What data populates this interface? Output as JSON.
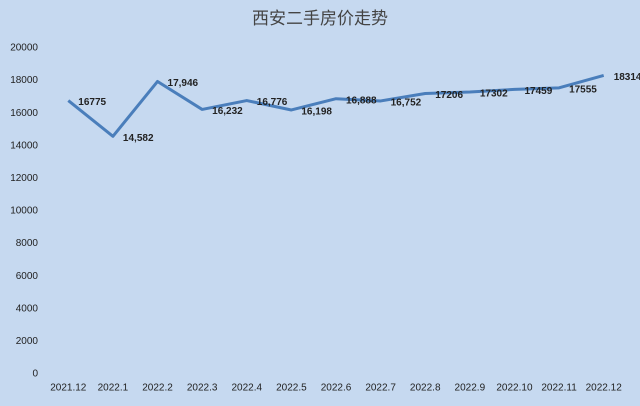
{
  "chart_data": {
    "type": "line",
    "title": "西安二手房价走势",
    "categories": [
      "2021.12",
      "2022.1",
      "2022.2",
      "2022.3",
      "2022.4",
      "2022.5",
      "2022.6",
      "2022.7",
      "2022.8",
      "2022.9",
      "2022.10",
      "2022.11",
      "2022.12"
    ],
    "values": [
      16775,
      14582,
      17946,
      16232,
      16776,
      16198,
      16888,
      16752,
      17206,
      17302,
      17459,
      17555,
      18314
    ],
    "value_labels": [
      "16775",
      "14,582",
      "17,946",
      "16,232",
      "16,776",
      "16,198",
      "16,888",
      "16,752",
      "17206",
      "17302",
      "17459",
      "17555",
      "18314"
    ],
    "color": "#4a7ebb",
    "ylim": [
      0,
      20000
    ],
    "yticks": [
      0,
      2000,
      4000,
      6000,
      8000,
      10000,
      12000,
      14000,
      16000,
      18000,
      20000
    ],
    "grid": false
  }
}
